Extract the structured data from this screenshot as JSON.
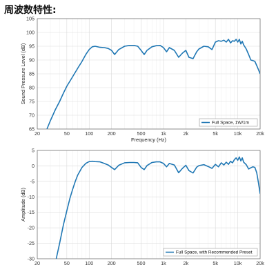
{
  "page": {
    "title": "周波数特性:"
  },
  "colors": {
    "line": "#1f77b4",
    "grid_major": "#d9d9d9",
    "grid_minor": "#efefef",
    "axis": "#666666"
  },
  "chart_data": [
    {
      "type": "line",
      "xscale": "log",
      "xlabel": "Frequency (Hz)",
      "ylabel": "Sound Pressure Level (dB)",
      "xlim": [
        20,
        20000
      ],
      "ylim": [
        65,
        105
      ],
      "xticks": [
        20,
        50,
        100,
        200,
        500,
        1000,
        2000,
        5000,
        10000,
        20000
      ],
      "xtick_labels": [
        "20",
        "50",
        "100",
        "200",
        "500",
        "1k",
        "2k",
        "5k",
        "10k",
        "20k"
      ],
      "yticks": [
        65,
        70,
        75,
        80,
        85,
        90,
        95,
        100,
        105
      ],
      "ytick_labels": [
        "65",
        "70",
        "75",
        "80",
        "85",
        "90",
        "95",
        "100",
        "105"
      ],
      "grid": true,
      "legend_position": "bottom-right",
      "series": [
        {
          "name": "Full Space, 1W/1m",
          "x": [
            27,
            30,
            35,
            40,
            45,
            50,
            60,
            70,
            80,
            90,
            100,
            110,
            120,
            140,
            160,
            180,
            200,
            220,
            250,
            300,
            350,
            400,
            450,
            500,
            550,
            600,
            700,
            800,
            900,
            1000,
            1100,
            1200,
            1400,
            1600,
            1800,
            2000,
            2200,
            2500,
            2800,
            3000,
            3500,
            4000,
            4500,
            5000,
            5500,
            6000,
            6500,
            7000,
            7500,
            8000,
            8500,
            9000,
            9500,
            10000,
            10500,
            11000,
            11500,
            12000,
            13000,
            14000,
            15000,
            16000,
            17000,
            18000,
            19000,
            20000
          ],
          "y": [
            65,
            68,
            72,
            75,
            78,
            80.5,
            84,
            87,
            89.5,
            92,
            93.8,
            94.8,
            95,
            94.6,
            94.5,
            94.2,
            93.5,
            92,
            93.8,
            95,
            95.3,
            95.3,
            95,
            93.5,
            92,
            93.5,
            94.8,
            95.2,
            95.3,
            94.5,
            93,
            94.5,
            93.5,
            91,
            92.5,
            93.5,
            91,
            90.5,
            93,
            94,
            95,
            94.8,
            93.8,
            96.5,
            97,
            96.8,
            97.2,
            96.5,
            97.5,
            96.2,
            97,
            96.8,
            97.5,
            96.5,
            97.5,
            95.8,
            96.8,
            95.5,
            94,
            92,
            90,
            89.8,
            89.5,
            88,
            86.5,
            85
          ]
        }
      ]
    },
    {
      "type": "line",
      "xscale": "log",
      "xlabel": "",
      "ylabel": "Amplitude (dB)",
      "xlim": [
        20,
        20000
      ],
      "ylim": [
        -30,
        5
      ],
      "xticks": [
        20,
        50,
        100,
        200,
        500,
        1000,
        2000,
        5000,
        10000,
        20000
      ],
      "xtick_labels": [
        "20",
        "50",
        "100",
        "200",
        "500",
        "1k",
        "2k",
        "5k",
        "10k",
        "20k"
      ],
      "yticks": [
        -30,
        -25,
        -20,
        -15,
        -10,
        -5,
        0,
        5
      ],
      "ytick_labels": [
        "-30",
        "-25",
        "-20",
        "-15",
        "-10",
        "-5",
        "0",
        "5"
      ],
      "grid": true,
      "legend_position": "bottom-right",
      "series": [
        {
          "name": "Full Space, with Recommended Preset",
          "x": [
            36,
            40,
            45,
            50,
            55,
            60,
            65,
            70,
            80,
            90,
            100,
            110,
            120,
            140,
            160,
            180,
            200,
            220,
            250,
            300,
            350,
            400,
            450,
            500,
            550,
            600,
            700,
            800,
            900,
            1000,
            1100,
            1200,
            1400,
            1600,
            1800,
            2000,
            2200,
            2500,
            2800,
            3000,
            3500,
            4000,
            4500,
            5000,
            5500,
            6000,
            6500,
            7000,
            7500,
            8000,
            8500,
            9000,
            9500,
            10000,
            10500,
            11000,
            11500,
            12000,
            13000,
            14000,
            15000,
            16000,
            17000,
            18000,
            19000,
            20000
          ],
          "y": [
            -30,
            -25,
            -19,
            -14.5,
            -10.5,
            -7.5,
            -5,
            -3,
            -0.5,
            0.8,
            1.4,
            1.5,
            1.4,
            1.3,
            0.8,
            0.3,
            -0.5,
            -1.2,
            0.2,
            1.0,
            1.1,
            1.1,
            1.0,
            -0.5,
            -1.2,
            0.1,
            1.1,
            1.3,
            1.3,
            0.8,
            -0.3,
            0.8,
            0.3,
            -2.2,
            -0.8,
            0.2,
            -1.5,
            -2.3,
            -0.4,
            0.1,
            0.4,
            -0.2,
            -0.8,
            0.5,
            -0.3,
            1.0,
            0.3,
            1.2,
            0.5,
            1.5,
            1.0,
            2.0,
            2.6,
            1.8,
            2.9,
            1.6,
            2.6,
            1.2,
            0.4,
            -1.0,
            -0.6,
            -0.3,
            -0.5,
            -2.2,
            -5.5,
            -9
          ]
        }
      ]
    }
  ]
}
